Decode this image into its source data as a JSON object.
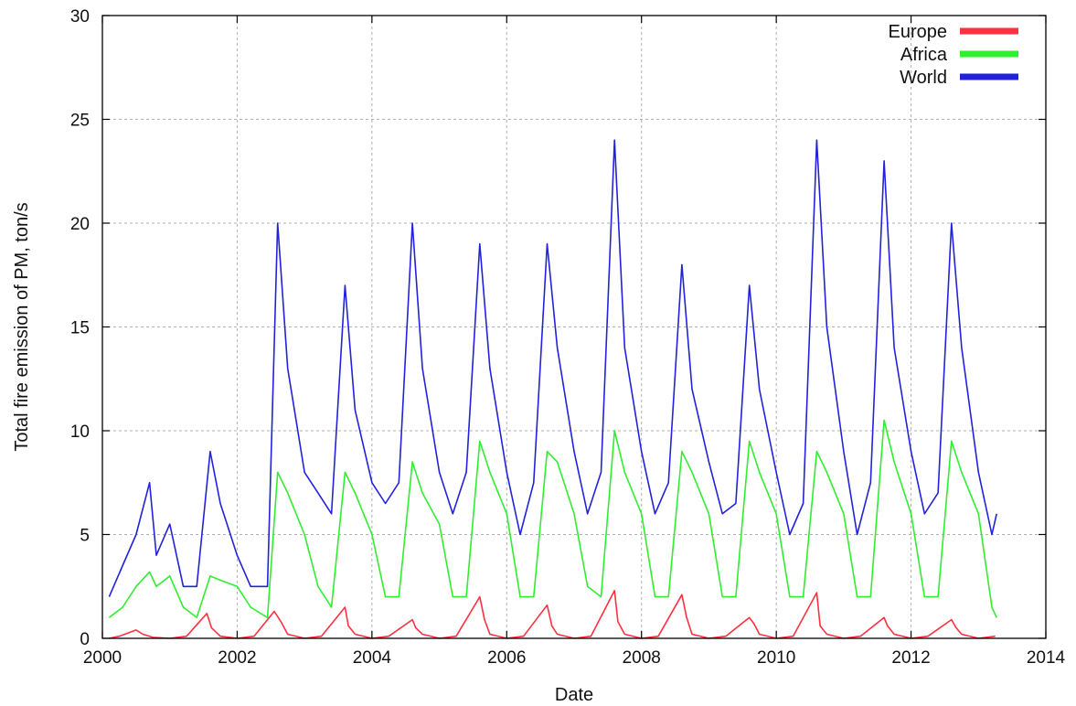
{
  "chart_data": {
    "type": "line",
    "title": "",
    "xlabel": "Date",
    "ylabel": "Total fire emission of PM, ton/s",
    "xlim": [
      2000,
      2014
    ],
    "ylim": [
      0,
      30
    ],
    "xticks": [
      2000,
      2002,
      2004,
      2006,
      2008,
      2010,
      2012,
      2014
    ],
    "yticks": [
      0,
      5,
      10,
      15,
      20,
      25,
      30
    ],
    "xtick_labels": [
      "2000",
      "2002",
      "2004",
      "2006",
      "2008",
      "2010",
      "2012",
      "2014"
    ],
    "ytick_labels": [
      "0",
      "5",
      "10",
      "15",
      "20",
      "25",
      "30"
    ],
    "grid": true,
    "legend_position": "top-right",
    "series": [
      {
        "name": "Europe",
        "color": "#ff3040",
        "x": [
          2000.1,
          2000.25,
          2000.5,
          2000.6,
          2000.75,
          2001.0,
          2001.25,
          2001.55,
          2001.62,
          2001.75,
          2002.0,
          2002.25,
          2002.55,
          2002.65,
          2002.75,
          2003.0,
          2003.25,
          2003.6,
          2003.65,
          2003.75,
          2004.0,
          2004.25,
          2004.6,
          2004.65,
          2004.75,
          2005.0,
          2005.25,
          2005.6,
          2005.67,
          2005.75,
          2006.0,
          2006.25,
          2006.6,
          2006.67,
          2006.75,
          2007.0,
          2007.25,
          2007.6,
          2007.65,
          2007.75,
          2008.0,
          2008.25,
          2008.6,
          2008.67,
          2008.75,
          2009.0,
          2009.25,
          2009.6,
          2009.67,
          2009.75,
          2010.0,
          2010.25,
          2010.6,
          2010.65,
          2010.75,
          2011.0,
          2011.25,
          2011.6,
          2011.65,
          2011.75,
          2012.0,
          2012.25,
          2012.6,
          2012.67,
          2012.75,
          2013.0,
          2013.25
        ],
        "y": [
          0.0,
          0.1,
          0.4,
          0.2,
          0.05,
          0.0,
          0.1,
          1.2,
          0.5,
          0.1,
          0.0,
          0.1,
          1.3,
          0.8,
          0.2,
          0.0,
          0.1,
          1.5,
          0.6,
          0.2,
          0.0,
          0.1,
          0.9,
          0.5,
          0.2,
          0.0,
          0.1,
          2.0,
          0.9,
          0.2,
          0.0,
          0.1,
          1.6,
          0.6,
          0.2,
          0.0,
          0.1,
          2.3,
          0.8,
          0.2,
          0.0,
          0.1,
          2.1,
          1.0,
          0.2,
          0.0,
          0.1,
          1.0,
          0.7,
          0.2,
          0.0,
          0.1,
          2.2,
          0.6,
          0.2,
          0.0,
          0.1,
          1.0,
          0.6,
          0.2,
          0.0,
          0.1,
          0.9,
          0.5,
          0.2,
          0.0,
          0.1
        ]
      },
      {
        "name": "Africa",
        "color": "#30ee30",
        "x": [
          2000.1,
          2000.3,
          2000.5,
          2000.7,
          2000.8,
          2001.0,
          2001.2,
          2001.4,
          2001.6,
          2001.75,
          2002.0,
          2002.2,
          2002.45,
          2002.6,
          2002.75,
          2003.0,
          2003.2,
          2003.4,
          2003.6,
          2003.75,
          2004.0,
          2004.2,
          2004.4,
          2004.6,
          2004.75,
          2005.0,
          2005.2,
          2005.4,
          2005.6,
          2005.75,
          2006.0,
          2006.2,
          2006.4,
          2006.6,
          2006.75,
          2007.0,
          2007.2,
          2007.4,
          2007.6,
          2007.75,
          2008.0,
          2008.2,
          2008.4,
          2008.6,
          2008.75,
          2009.0,
          2009.2,
          2009.4,
          2009.6,
          2009.75,
          2010.0,
          2010.2,
          2010.4,
          2010.6,
          2010.75,
          2011.0,
          2011.2,
          2011.4,
          2011.6,
          2011.75,
          2012.0,
          2012.2,
          2012.4,
          2012.6,
          2012.75,
          2013.0,
          2013.2,
          2013.27
        ],
        "y": [
          1.0,
          1.5,
          2.5,
          3.2,
          2.5,
          3.0,
          1.5,
          1.0,
          3.0,
          2.8,
          2.5,
          1.5,
          1.0,
          8.0,
          7.0,
          5.0,
          2.5,
          1.5,
          8.0,
          7.0,
          5.0,
          2.0,
          2.0,
          8.5,
          7.0,
          5.5,
          2.0,
          2.0,
          9.5,
          8.0,
          6.0,
          2.0,
          2.0,
          9.0,
          8.5,
          6.0,
          2.5,
          2.0,
          10.0,
          8.0,
          6.0,
          2.0,
          2.0,
          9.0,
          8.0,
          6.0,
          2.0,
          2.0,
          9.5,
          8.0,
          6.0,
          2.0,
          2.0,
          9.0,
          8.0,
          6.0,
          2.0,
          2.0,
          10.5,
          8.5,
          6.0,
          2.0,
          2.0,
          9.5,
          8.0,
          6.0,
          1.5,
          1.0
        ]
      },
      {
        "name": "World",
        "color": "#2222dd",
        "x": [
          2000.1,
          2000.3,
          2000.5,
          2000.7,
          2000.8,
          2001.0,
          2001.2,
          2001.4,
          2001.6,
          2001.75,
          2002.0,
          2002.2,
          2002.45,
          2002.6,
          2002.75,
          2003.0,
          2003.2,
          2003.4,
          2003.6,
          2003.75,
          2004.0,
          2004.2,
          2004.4,
          2004.6,
          2004.75,
          2005.0,
          2005.2,
          2005.4,
          2005.6,
          2005.75,
          2006.0,
          2006.2,
          2006.4,
          2006.6,
          2006.75,
          2007.0,
          2007.2,
          2007.4,
          2007.6,
          2007.75,
          2008.0,
          2008.2,
          2008.4,
          2008.6,
          2008.75,
          2009.0,
          2009.2,
          2009.4,
          2009.6,
          2009.75,
          2010.0,
          2010.2,
          2010.4,
          2010.6,
          2010.75,
          2011.0,
          2011.2,
          2011.4,
          2011.6,
          2011.75,
          2012.0,
          2012.2,
          2012.4,
          2012.6,
          2012.75,
          2013.0,
          2013.2,
          2013.27
        ],
        "y": [
          2.0,
          3.5,
          5.0,
          7.5,
          4.0,
          5.5,
          2.5,
          2.5,
          9.0,
          6.5,
          4.0,
          2.5,
          2.5,
          20.0,
          13.0,
          8.0,
          7.0,
          6.0,
          17.0,
          11.0,
          7.5,
          6.5,
          7.5,
          20.0,
          13.0,
          8.0,
          6.0,
          8.0,
          19.0,
          13.0,
          8.0,
          5.0,
          7.5,
          19.0,
          14.0,
          9.0,
          6.0,
          8.0,
          24.0,
          14.0,
          9.0,
          6.0,
          7.5,
          18.0,
          12.0,
          8.5,
          6.0,
          6.5,
          17.0,
          12.0,
          8.0,
          5.0,
          6.5,
          24.0,
          15.0,
          9.0,
          5.0,
          7.5,
          23.0,
          14.0,
          9.0,
          6.0,
          7.0,
          20.0,
          14.0,
          8.0,
          5.0,
          6.0
        ]
      }
    ]
  }
}
